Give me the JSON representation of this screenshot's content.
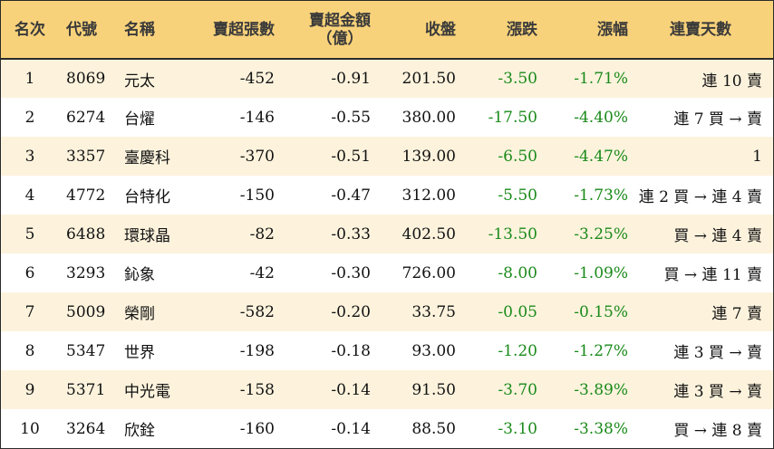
{
  "headers": {
    "rank": "名次",
    "code": "代號",
    "name": "名稱",
    "net_sell_volume": "賣超張數",
    "net_sell_amount_line1": "賣超金額",
    "net_sell_amount_line2": "（億）",
    "close": "收盤",
    "change": "漲跌",
    "change_pct": "漲幅",
    "streak": "連賣天數"
  },
  "colors": {
    "header_bg": "#f8d27a",
    "row_alt_bg": "#fdf3dd",
    "negative_text": "#1a8a1a",
    "border": "#2b2b2b"
  },
  "rows": [
    {
      "rank": "1",
      "code": "8069",
      "name": "元太",
      "volume": "-452",
      "amount": "-0.91",
      "close": "201.50",
      "change": "-3.50",
      "pct": "-1.71%",
      "streak": "連 10 賣"
    },
    {
      "rank": "2",
      "code": "6274",
      "name": "台燿",
      "volume": "-146",
      "amount": "-0.55",
      "close": "380.00",
      "change": "-17.50",
      "pct": "-4.40%",
      "streak": "連 7 買 → 賣"
    },
    {
      "rank": "3",
      "code": "3357",
      "name": "臺慶科",
      "volume": "-370",
      "amount": "-0.51",
      "close": "139.00",
      "change": "-6.50",
      "pct": "-4.47%",
      "streak": "1"
    },
    {
      "rank": "4",
      "code": "4772",
      "name": "台特化",
      "volume": "-150",
      "amount": "-0.47",
      "close": "312.00",
      "change": "-5.50",
      "pct": "-1.73%",
      "streak": "連 2 買 → 連 4 賣"
    },
    {
      "rank": "5",
      "code": "6488",
      "name": "環球晶",
      "volume": "-82",
      "amount": "-0.33",
      "close": "402.50",
      "change": "-13.50",
      "pct": "-3.25%",
      "streak": "買 → 連 4 賣"
    },
    {
      "rank": "6",
      "code": "3293",
      "name": "鈊象",
      "volume": "-42",
      "amount": "-0.30",
      "close": "726.00",
      "change": "-8.00",
      "pct": "-1.09%",
      "streak": "買 → 連 11 賣"
    },
    {
      "rank": "7",
      "code": "5009",
      "name": "榮剛",
      "volume": "-582",
      "amount": "-0.20",
      "close": "33.75",
      "change": "-0.05",
      "pct": "-0.15%",
      "streak": "連 7 賣"
    },
    {
      "rank": "8",
      "code": "5347",
      "name": "世界",
      "volume": "-198",
      "amount": "-0.18",
      "close": "93.00",
      "change": "-1.20",
      "pct": "-1.27%",
      "streak": "連 3 買 → 賣"
    },
    {
      "rank": "9",
      "code": "5371",
      "name": "中光電",
      "volume": "-158",
      "amount": "-0.14",
      "close": "91.50",
      "change": "-3.70",
      "pct": "-3.89%",
      "streak": "連 3 買 → 賣"
    },
    {
      "rank": "10",
      "code": "3264",
      "name": "欣銓",
      "volume": "-160",
      "amount": "-0.14",
      "close": "88.50",
      "change": "-3.10",
      "pct": "-3.38%",
      "streak": "買 → 連 8 賣"
    }
  ]
}
